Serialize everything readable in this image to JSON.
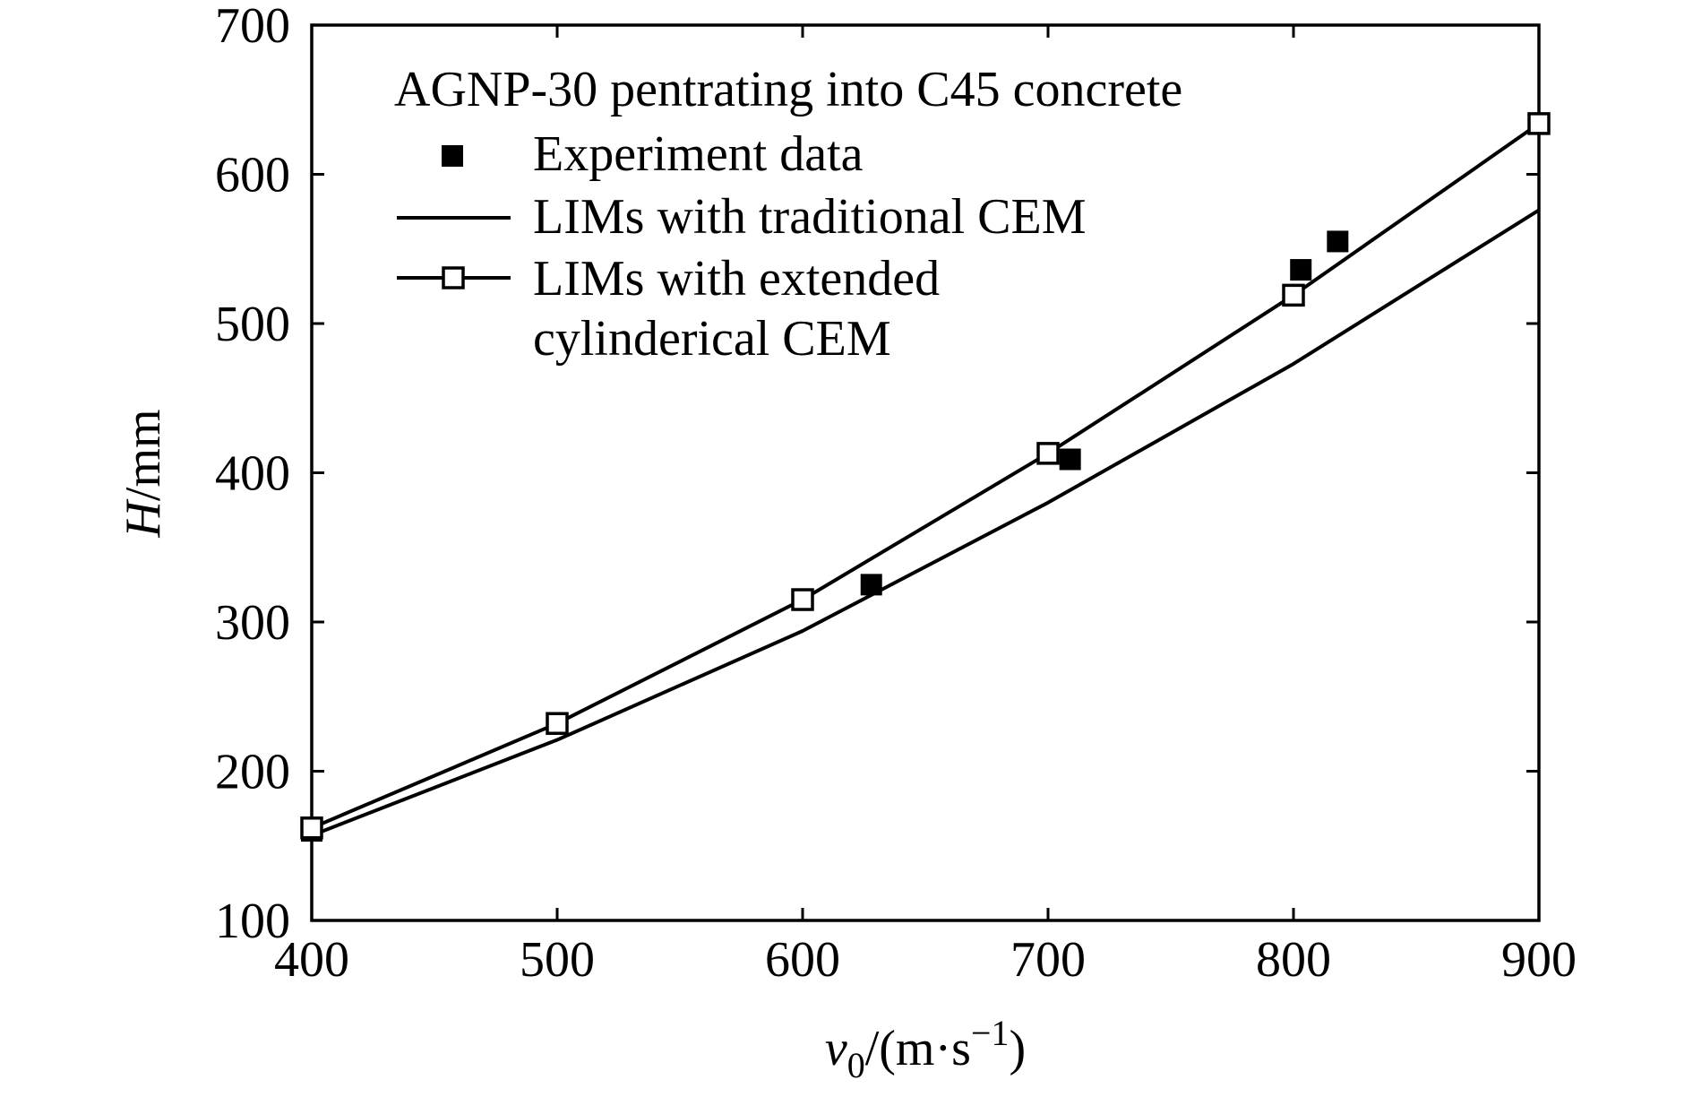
{
  "chart_data": {
    "type": "line",
    "title": "AGNP-30 pentrating into C45 concrete",
    "xlabel": {
      "var": "v",
      "sub": "0",
      "rest": "/(m·s",
      "sup": "−1",
      "close": ")"
    },
    "ylabel": {
      "var": "H",
      "rest": "/mm"
    },
    "xlim": [
      400,
      900
    ],
    "ylim": [
      100,
      700
    ],
    "xticks": [
      "400",
      "500",
      "600",
      "700",
      "800",
      "900"
    ],
    "yticks": [
      "100",
      "200",
      "300",
      "400",
      "500",
      "600",
      "700"
    ],
    "grid": false,
    "legend_position": "top-left",
    "series": [
      {
        "name": "Experiment data",
        "kind": "scatter",
        "marker": "filled-square",
        "x": [
          400,
          628,
          709,
          803,
          818
        ],
        "y": [
          160,
          325,
          409,
          536,
          555
        ]
      },
      {
        "name": "LIMs with traditional CEM",
        "kind": "line",
        "marker": "none",
        "x": [
          400,
          500,
          600,
          700,
          800,
          900
        ],
        "y": [
          157,
          221,
          294,
          380,
          473,
          576
        ]
      },
      {
        "name": [
          "LIMs with extended",
          "cylinderical CEM"
        ],
        "kind": "line",
        "marker": "open-square",
        "x": [
          400,
          500,
          600,
          700,
          800,
          900
        ],
        "y": [
          162,
          232,
          315,
          413,
          519,
          634
        ]
      }
    ],
    "colors": {
      "ink": "#000000",
      "background": "#ffffff"
    }
  }
}
